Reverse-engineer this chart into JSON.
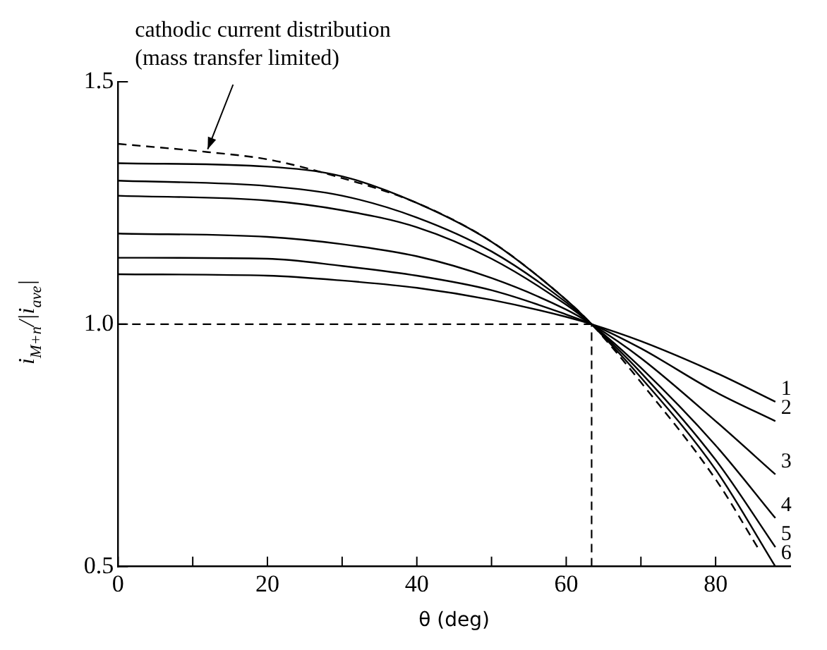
{
  "chart_data": {
    "type": "line",
    "xlabel": "θ (deg)",
    "ylabel": "i$_{M+n}$/|i$_{ave}$|",
    "annotations": [
      {
        "text": "cathodic current distribution\n(mass transfer limited)",
        "x": 12,
        "y": 1.355
      }
    ],
    "xlim": [
      0,
      90
    ],
    "ylim": [
      0.5,
      1.5
    ],
    "xticks": [
      0,
      {
        "value": 10,
        "label": null
      },
      20,
      {
        "value": 30,
        "label": null
      },
      40,
      {
        "value": 50,
        "label": null
      },
      60,
      {
        "value": 70,
        "label": null
      },
      80
    ],
    "yticks": [
      0.5,
      {
        "value": 1,
        "label": "1.0"
      },
      1.5
    ],
    "grid": false,
    "legend": false,
    "marker": "none",
    "ref_lines": [
      {
        "axis": "y",
        "value": 1,
        "line_style": "dashed",
        "color": "#000000"
      },
      {
        "axis": "x",
        "value": 63.4,
        "line_style": "dashed",
        "color": "#000000"
      }
    ],
    "series": [
      {
        "color": "#000000",
        "line_style": "dashed",
        "x": [
          0,
          12,
          20,
          28,
          40,
          50,
          60,
          63.4,
          70,
          80,
          86
        ],
        "values": [
          1.372,
          1.355,
          1.34,
          1.31,
          1.25,
          1.17,
          1.05,
          1.0,
          0.88,
          0.68,
          0.53
        ]
      },
      {
        "name": "1",
        "color": "#000000",
        "line_style": "solid",
        "x": [
          0,
          20,
          30,
          40,
          50,
          60,
          63.4,
          70,
          80,
          88
        ],
        "values": [
          1.103,
          1.1,
          1.09,
          1.075,
          1.05,
          1.015,
          1.0,
          0.965,
          0.9,
          0.84
        ]
      },
      {
        "name": "2",
        "color": "#000000",
        "line_style": "solid",
        "x": [
          0,
          20,
          30,
          40,
          50,
          60,
          63.4,
          70,
          80,
          88
        ],
        "values": [
          1.137,
          1.135,
          1.12,
          1.1,
          1.07,
          1.02,
          1.0,
          0.95,
          0.86,
          0.8
        ]
      },
      {
        "name": "3",
        "color": "#000000",
        "line_style": "solid",
        "x": [
          0,
          20,
          30,
          40,
          50,
          60,
          63.4,
          70,
          80,
          88
        ],
        "values": [
          1.187,
          1.18,
          1.165,
          1.14,
          1.095,
          1.03,
          1.0,
          0.93,
          0.8,
          0.69
        ]
      },
      {
        "name": "4",
        "color": "#000000",
        "line_style": "solid",
        "x": [
          0,
          20,
          30,
          40,
          50,
          60,
          63.4,
          70,
          80,
          88
        ],
        "values": [
          1.265,
          1.255,
          1.235,
          1.2,
          1.135,
          1.04,
          1.0,
          0.91,
          0.75,
          0.6
        ]
      },
      {
        "name": "5",
        "color": "#000000",
        "line_style": "solid",
        "x": [
          0,
          20,
          30,
          40,
          50,
          60,
          63.4,
          70,
          80,
          88
        ],
        "values": [
          1.296,
          1.285,
          1.265,
          1.22,
          1.15,
          1.045,
          1.0,
          0.9,
          0.72,
          0.54
        ]
      },
      {
        "name": "6",
        "color": "#000000",
        "line_style": "solid",
        "x": [
          0,
          20,
          30,
          40,
          50,
          60,
          63.4,
          70,
          80,
          88
        ],
        "values": [
          1.332,
          1.325,
          1.305,
          1.25,
          1.17,
          1.05,
          1.0,
          0.89,
          0.7,
          0.5
        ]
      }
    ]
  }
}
